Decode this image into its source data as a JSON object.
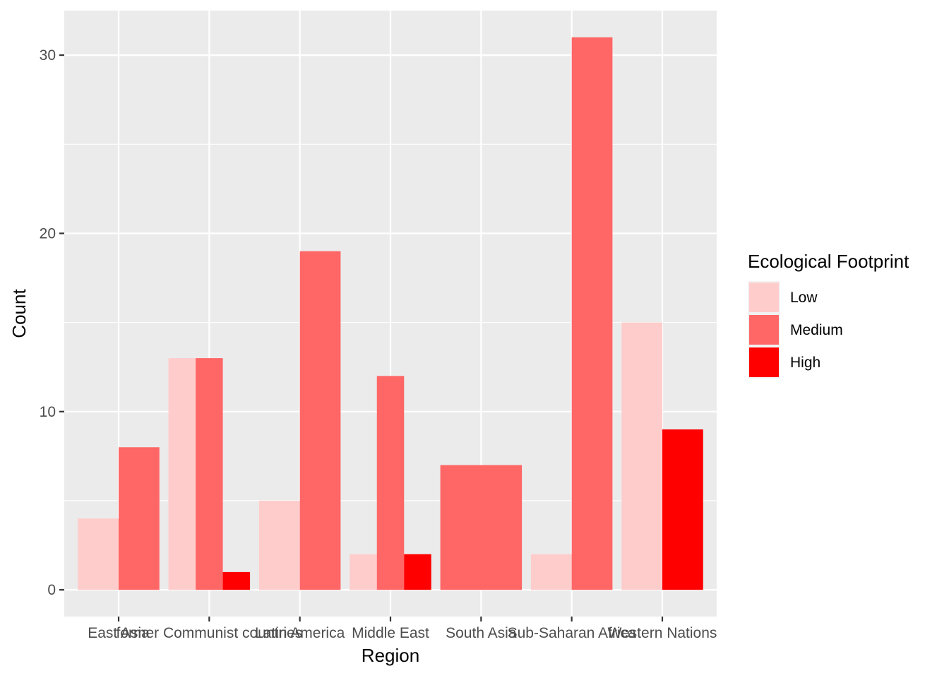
{
  "chart_data": {
    "type": "bar",
    "xlabel": "Region",
    "ylabel": "Count",
    "categories": [
      "East Asia",
      "former Communist countries",
      "Latin America",
      "Middle East",
      "South Asia",
      "Sub-Saharan Africa",
      "Western Nations"
    ],
    "ylim": [
      -1.5,
      32.5
    ],
    "yticks": [
      0,
      10,
      20,
      30
    ],
    "grid": true,
    "legend": {
      "title": "Ecological Footprint",
      "placement": "right"
    },
    "series": [
      {
        "name": "Low",
        "color": "#FFCCCC",
        "values": [
          4,
          13,
          5,
          2,
          null,
          2,
          15
        ]
      },
      {
        "name": "Medium",
        "color": "#FF6666",
        "values": [
          8,
          13,
          19,
          12,
          7,
          31,
          null
        ]
      },
      {
        "name": "High",
        "color": "#FF0000",
        "values": [
          null,
          1,
          null,
          2,
          null,
          null,
          9
        ]
      }
    ]
  }
}
